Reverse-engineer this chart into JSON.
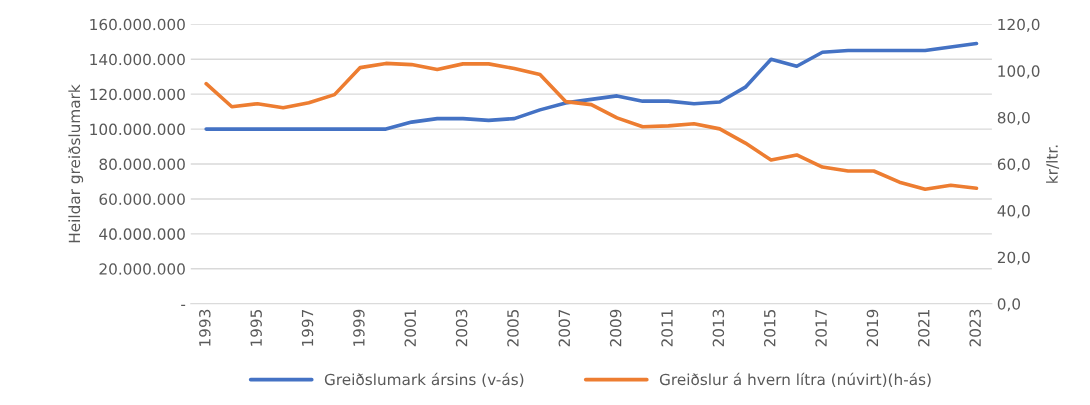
{
  "chart_data": {
    "type": "line",
    "ylabel": "Heildar greiðslumark",
    "y2label": "kr/ltr.",
    "categories": [
      "1993",
      null,
      "1995",
      null,
      "1997",
      null,
      "1999",
      null,
      "2001",
      null,
      "2003",
      null,
      "2005",
      null,
      "2007",
      null,
      "2009",
      null,
      "2011",
      null,
      "2013",
      null,
      "2015",
      null,
      "2017",
      null,
      "2019",
      null,
      "2021",
      null,
      "2023"
    ],
    "series": [
      {
        "name": "Greiðslumark ársins (v-ás)",
        "color": "#4472c4",
        "values": [
          100000000,
          100000000,
          100000000,
          100000000,
          100000000,
          100000000,
          100000000,
          100000000,
          104000000,
          106000000,
          106000000,
          105000000,
          106000000,
          111000000,
          115000000,
          117000000,
          119000000,
          116000000,
          116000000,
          114500000,
          115500000,
          124000000,
          140000000,
          136000000,
          144000000,
          145000000,
          145000000,
          145000000,
          145000000,
          147000000,
          149000000
        ]
      },
      {
        "name": "Greiðslur á hvern lítra (núvirt)(h-ás)",
        "color": "#ed7d31",
        "axis": "y2",
        "values": [
          94.5,
          84.6,
          85.9,
          84.2,
          86.3,
          89.8,
          101.4,
          103.2,
          102.7,
          100.6,
          103.0,
          103.0,
          101.0,
          98.4,
          86.8,
          85.5,
          79.8,
          76.0,
          76.4,
          77.3,
          75.1,
          69.0,
          61.7,
          63.9,
          58.7,
          57.0,
          57.0,
          52.2,
          49.2,
          50.9,
          49.6
        ]
      }
    ],
    "ylim": [
      0,
      160000000
    ],
    "yticks": [
      {
        "value": 0,
        "label": "-"
      },
      {
        "value": 20000000,
        "label": "20.000.000"
      },
      {
        "value": 40000000,
        "label": "40.000.000"
      },
      {
        "value": 60000000,
        "label": "60.000.000"
      },
      {
        "value": 80000000,
        "label": "80.000.000"
      },
      {
        "value": 100000000,
        "label": "100.000.000"
      },
      {
        "value": 120000000,
        "label": "120.000.000"
      },
      {
        "value": 140000000,
        "label": "140.000.000"
      },
      {
        "value": 160000000,
        "label": "160.000.000"
      }
    ],
    "y2lim": [
      0,
      120
    ],
    "y2ticks": [
      {
        "value": 0,
        "label": "0,0"
      },
      {
        "value": 20,
        "label": "20,0"
      },
      {
        "value": 40,
        "label": "40,0"
      },
      {
        "value": 60,
        "label": "60,0"
      },
      {
        "value": 80,
        "label": "80,0"
      },
      {
        "value": 100,
        "label": "100,0"
      },
      {
        "value": 120,
        "label": "120,0"
      }
    ],
    "grid": "y",
    "legend": "bottom",
    "marker": "none",
    "line_style": "solid"
  }
}
